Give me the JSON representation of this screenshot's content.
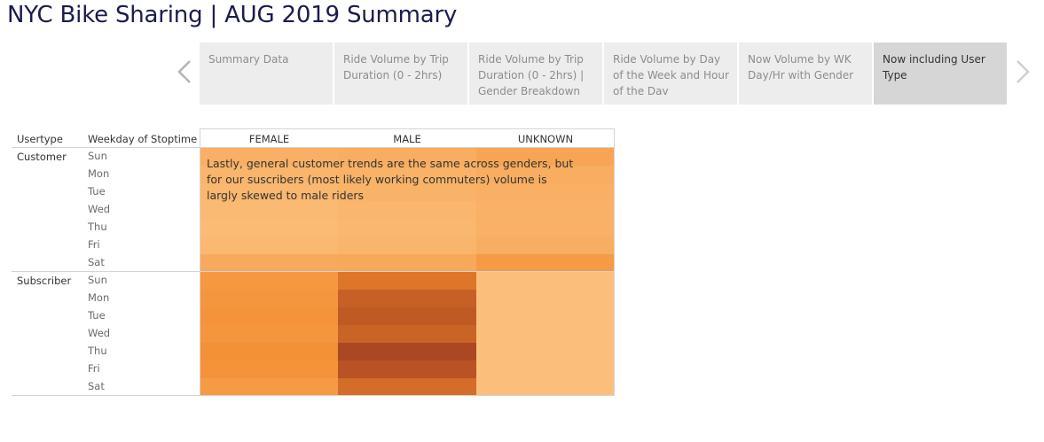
{
  "header": {
    "title": "NYC Bike Sharing | AUG 2019 Summary"
  },
  "story": {
    "points": [
      "Summary Data",
      "Ride Volume by Trip Duration (0 - 2hrs)",
      "Ride Volume by Trip Duration (0 - 2hrs) | Gender Breakdown",
      "Ride Volume by Day of the Week and Hour of the Dav",
      "Now Volume by WK Day/Hr with Gender",
      "Now including User Type"
    ],
    "active_index": 5
  },
  "chart_data": {
    "type": "heatmap",
    "row_headers": [
      "Usertype",
      "Weekday of Stoptime"
    ],
    "columns": [
      "FEMALE",
      "MALE",
      "UNKNOWN"
    ],
    "usertypes": [
      "Customer",
      "Subscriber"
    ],
    "days": [
      "Sun",
      "Mon",
      "Tue",
      "Wed",
      "Thu",
      "Fri",
      "Sat"
    ],
    "intensity": {
      "Customer": [
        [
          0.2,
          0.22,
          0.28
        ],
        [
          0.16,
          0.18,
          0.22
        ],
        [
          0.14,
          0.17,
          0.2
        ],
        [
          0.12,
          0.15,
          0.19
        ],
        [
          0.11,
          0.14,
          0.19
        ],
        [
          0.13,
          0.16,
          0.21
        ],
        [
          0.24,
          0.26,
          0.36
        ]
      ],
      "Subscriber": [
        [
          0.38,
          0.62,
          0.08
        ],
        [
          0.4,
          0.76,
          0.08
        ],
        [
          0.42,
          0.8,
          0.08
        ],
        [
          0.4,
          0.74,
          0.08
        ],
        [
          0.44,
          0.92,
          0.08
        ],
        [
          0.42,
          0.84,
          0.08
        ],
        [
          0.36,
          0.68,
          0.08
        ]
      ]
    },
    "annotation": "Lastly, general customer trends are the same across genders, but for our suscribers (most likely working commuters) volume is largly skewed to male riders",
    "colors": {
      "low": "#fdc98a",
      "mid": "#f2892a",
      "high": "#9e3a22"
    }
  }
}
